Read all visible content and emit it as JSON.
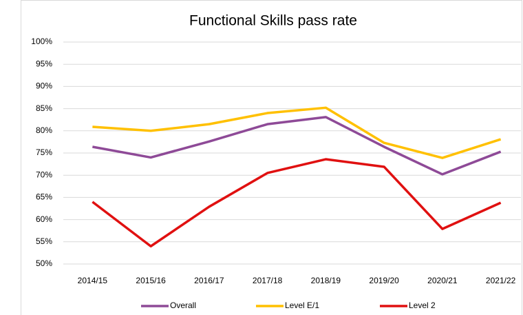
{
  "chart_data": {
    "type": "line",
    "title": "Functional Skills pass rate",
    "categories": [
      "2014/15",
      "2015/16",
      "2016/17",
      "2017/18",
      "2018/19",
      "2019/20",
      "2020/21",
      "2021/22"
    ],
    "series": [
      {
        "name": "Overall",
        "color": "#8e4a97",
        "values": [
          76.4,
          74,
          77.6,
          81.5,
          83.1,
          76.4,
          70.2,
          75.3
        ]
      },
      {
        "name": "Level E/1",
        "color": "#ffc000",
        "values": [
          80.9,
          80,
          81.5,
          84,
          85.2,
          77.3,
          73.9,
          78.1
        ]
      },
      {
        "name": "Level 2",
        "color": "#e01010",
        "values": [
          64,
          54,
          62.9,
          70.5,
          73.6,
          71.9,
          57.9,
          63.8
        ]
      }
    ],
    "ylim": [
      50,
      100
    ],
    "yticks": [
      {
        "value": 50,
        "label": "50%"
      },
      {
        "value": 55,
        "label": "55%"
      },
      {
        "value": 60,
        "label": "60%"
      },
      {
        "value": 65,
        "label": "65%"
      },
      {
        "value": 70,
        "label": "70%"
      },
      {
        "value": 75,
        "label": "75%"
      },
      {
        "value": 80,
        "label": "80%"
      },
      {
        "value": 85,
        "label": "85%"
      },
      {
        "value": 90,
        "label": "90%"
      },
      {
        "value": 95,
        "label": "95%"
      },
      {
        "value": 100,
        "label": "100%"
      }
    ],
    "grid": true,
    "legend": "bottom"
  }
}
